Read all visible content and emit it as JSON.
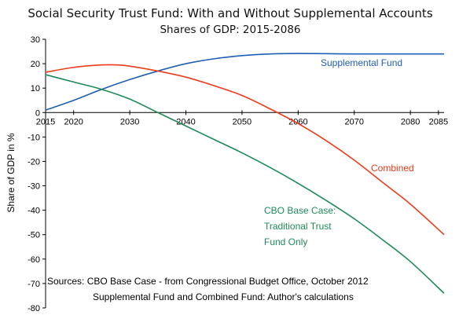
{
  "chart_data": {
    "type": "line",
    "title": "Social Security Trust Fund:  With and Without Supplemental Accounts",
    "subtitle": "Shares of GDP:  2015-2086",
    "ylabel": "Share of GDP in %",
    "xlabel": "",
    "xlim": [
      2015,
      2086
    ],
    "ylim": [
      -80,
      30
    ],
    "x_ticks": [
      2015,
      2020,
      2030,
      2040,
      2050,
      2060,
      2070,
      2080,
      2085
    ],
    "y_ticks": [
      30,
      20,
      10,
      0,
      -10,
      -20,
      -30,
      -40,
      -50,
      -60,
      -70,
      -80
    ],
    "grid": false,
    "series": [
      {
        "name": "Supplemental Fund",
        "label_lines": [
          "Supplemental Fund"
        ],
        "color": "#1f5fb4",
        "x": [
          2015,
          2020,
          2025,
          2030,
          2035,
          2040,
          2045,
          2050,
          2055,
          2060,
          2065,
          2070,
          2075,
          2080,
          2086
        ],
        "y": [
          1,
          5,
          9.5,
          13.5,
          17,
          20,
          22,
          23.3,
          24,
          24.2,
          24.1,
          24,
          24,
          24,
          24
        ]
      },
      {
        "name": "Combined",
        "label_lines": [
          "Combined"
        ],
        "color": "#ee3b1c",
        "x": [
          2015,
          2020,
          2025,
          2028,
          2030,
          2035,
          2040,
          2045,
          2050,
          2055,
          2060,
          2065,
          2070,
          2075,
          2080,
          2086
        ],
        "y": [
          16.5,
          18.5,
          19.5,
          19.5,
          19,
          17,
          14.5,
          11,
          7,
          1.5,
          -4.5,
          -11.5,
          -19.5,
          -28.5,
          -37.5,
          -50
        ]
      },
      {
        "name": "CBO Base Case: Traditional Trust Fund Only",
        "label_lines": [
          "CBO Base Case:",
          "Traditional Trust",
          "Fund Only"
        ],
        "color": "#1e8a58",
        "x": [
          2015,
          2020,
          2025,
          2030,
          2035,
          2040,
          2045,
          2050,
          2055,
          2060,
          2065,
          2070,
          2075,
          2080,
          2086
        ],
        "y": [
          15.5,
          12.5,
          9.5,
          5.5,
          0,
          -5.5,
          -11,
          -16.5,
          -22.5,
          -29,
          -36,
          -43.5,
          -52,
          -61,
          -74
        ]
      }
    ],
    "sources": [
      "Sources:  CBO Base Case - from Congressional Budget Office, October 2012",
      "Supplemental Fund and Combined Fund:  Author's calculations"
    ]
  }
}
